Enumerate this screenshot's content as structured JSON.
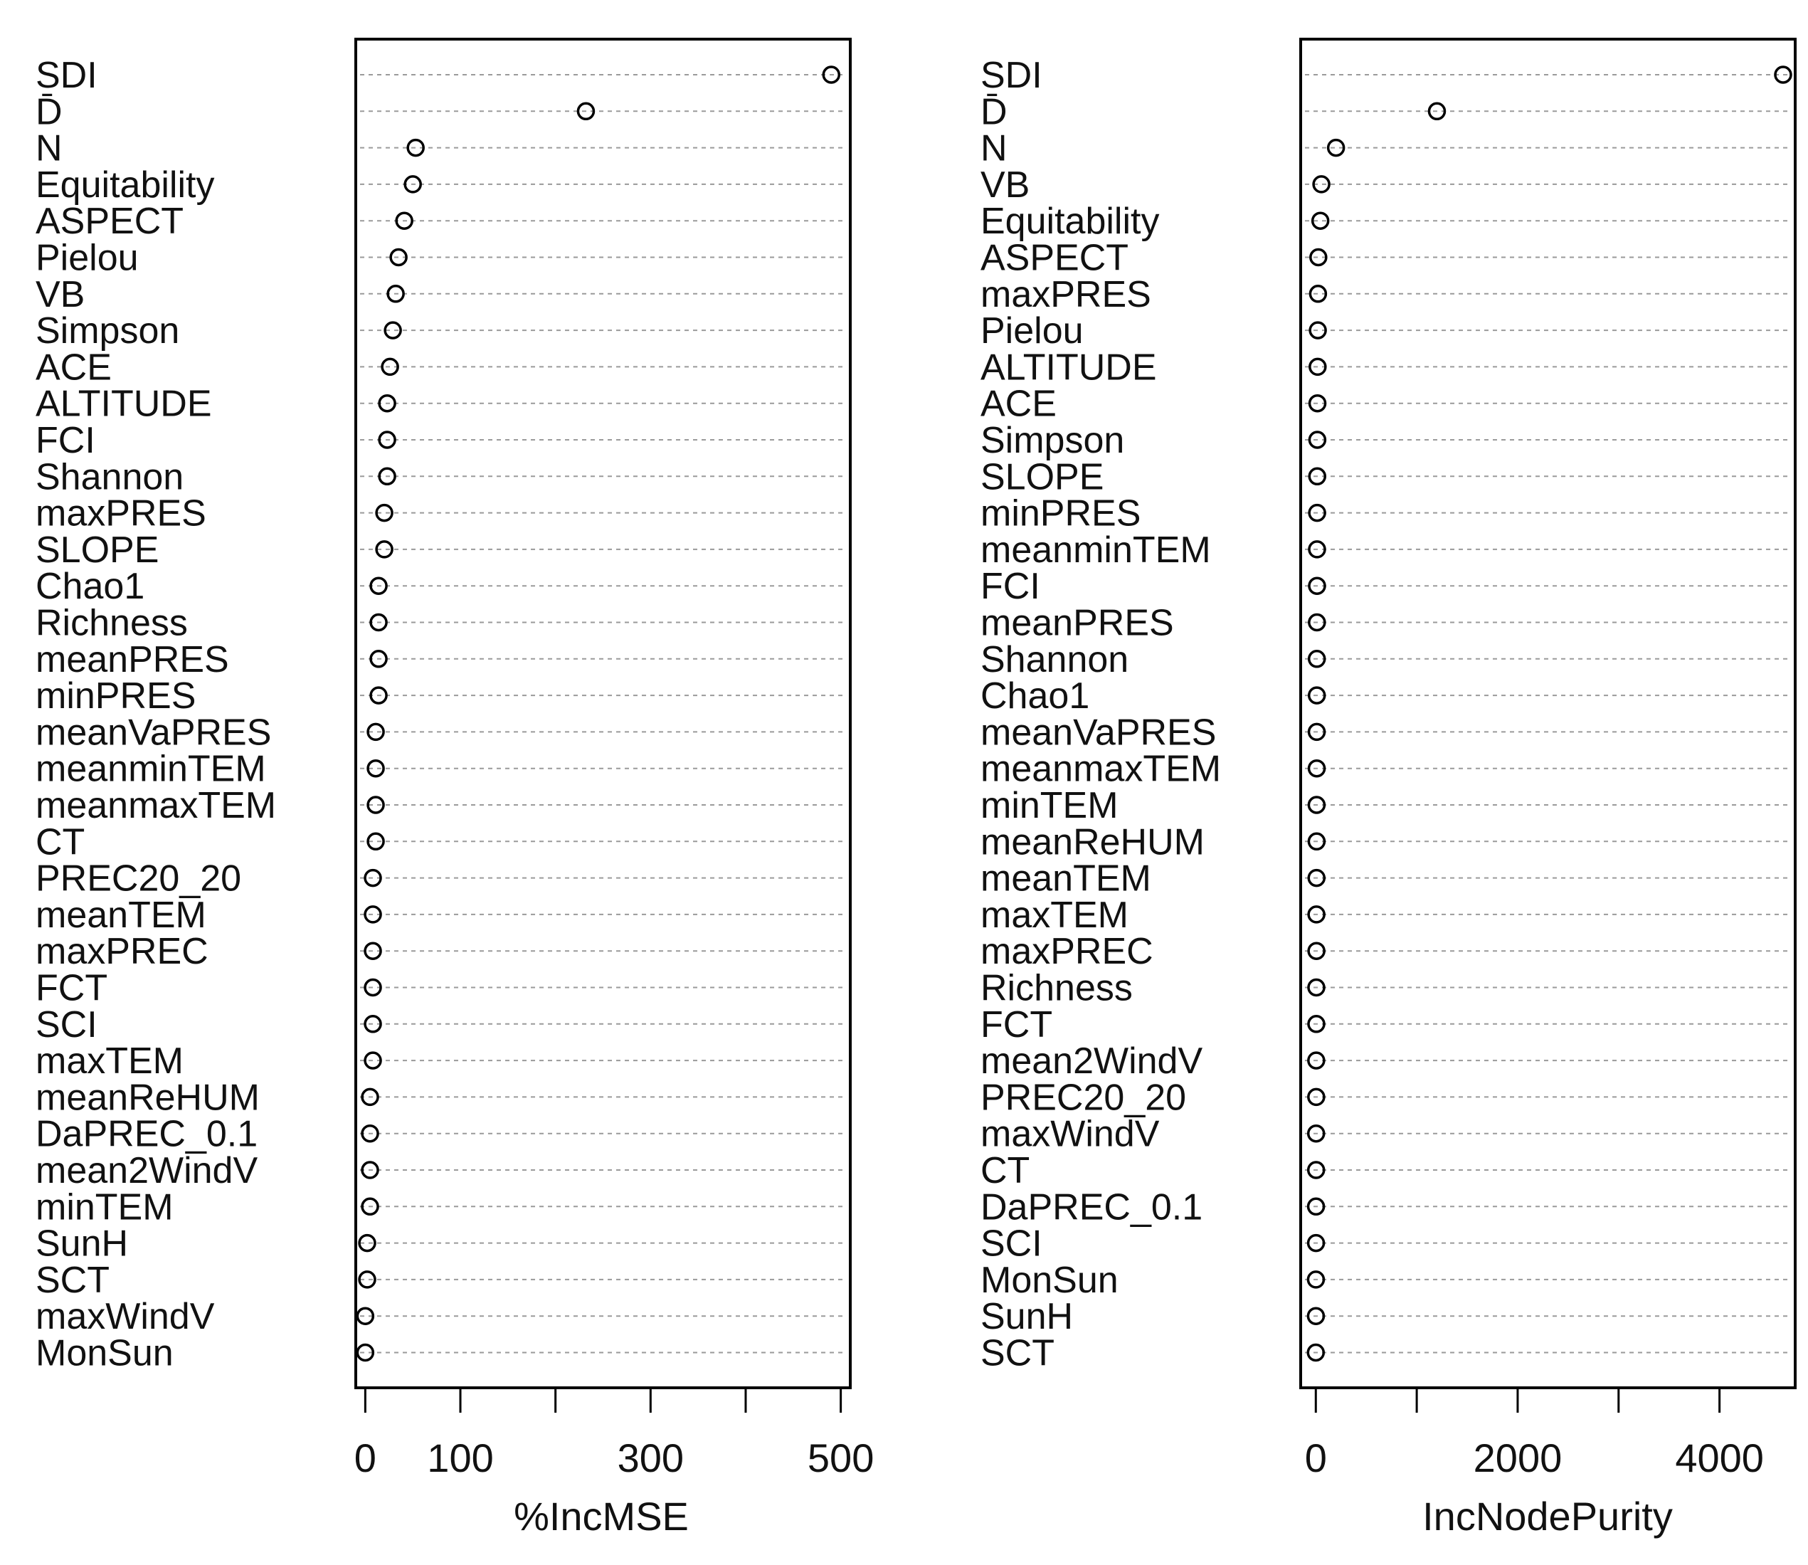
{
  "chart_data": [
    {
      "type": "scatter",
      "xlabel": "%IncMSE",
      "xlim": [
        -10,
        510
      ],
      "xticks": [
        0,
        100,
        200,
        300,
        400,
        500
      ],
      "xtick_labels": [
        "0",
        "100",
        "",
        "300",
        "",
        "500"
      ],
      "grid": false,
      "points": [
        {
          "label": "SDI",
          "value": 490
        },
        {
          "label": "D̄",
          "value": 232
        },
        {
          "label": "N",
          "value": 53
        },
        {
          "label": "Equitability",
          "value": 50
        },
        {
          "label": "ASPECT",
          "value": 41
        },
        {
          "label": "Pielou",
          "value": 35
        },
        {
          "label": "VB",
          "value": 32
        },
        {
          "label": "Simpson",
          "value": 29
        },
        {
          "label": "ACE",
          "value": 26
        },
        {
          "label": "ALTITUDE",
          "value": 23
        },
        {
          "label": "FCI",
          "value": 23
        },
        {
          "label": "Shannon",
          "value": 23
        },
        {
          "label": "maxPRES",
          "value": 20
        },
        {
          "label": "SLOPE",
          "value": 20
        },
        {
          "label": "Chao1",
          "value": 14
        },
        {
          "label": "Richness",
          "value": 14
        },
        {
          "label": "meanPRES",
          "value": 14
        },
        {
          "label": "minPRES",
          "value": 14
        },
        {
          "label": "meanVaPRES",
          "value": 11
        },
        {
          "label": "meanminTEM",
          "value": 11
        },
        {
          "label": "meanmaxTEM",
          "value": 11
        },
        {
          "label": "CT",
          "value": 11
        },
        {
          "label": "PREC20_20",
          "value": 8
        },
        {
          "label": "meanTEM",
          "value": 8
        },
        {
          "label": "maxPREC",
          "value": 8
        },
        {
          "label": "FCT",
          "value": 8
        },
        {
          "label": "SCI",
          "value": 8
        },
        {
          "label": "maxTEM",
          "value": 8
        },
        {
          "label": "meanReHUM",
          "value": 5
        },
        {
          "label": "DaPREC_0.1",
          "value": 5
        },
        {
          "label": "mean2WindV",
          "value": 5
        },
        {
          "label": "minTEM",
          "value": 5
        },
        {
          "label": "SunH",
          "value": 2
        },
        {
          "label": "SCT",
          "value": 2
        },
        {
          "label": "maxWindV",
          "value": 0
        },
        {
          "label": "MonSun",
          "value": 0
        }
      ]
    },
    {
      "type": "scatter",
      "xlabel": "IncNodePurity",
      "xlim": [
        -150,
        4750
      ],
      "xticks": [
        0,
        1000,
        2000,
        3000,
        4000
      ],
      "xtick_labels": [
        "0",
        "",
        "2000",
        "",
        "4000"
      ],
      "grid": false,
      "points": [
        {
          "label": "SDI",
          "value": 4630
        },
        {
          "label": "D̄",
          "value": 1200
        },
        {
          "label": "N",
          "value": 200
        },
        {
          "label": "VB",
          "value": 55
        },
        {
          "label": "Equitability",
          "value": 45
        },
        {
          "label": "ASPECT",
          "value": 25
        },
        {
          "label": "maxPRES",
          "value": 22
        },
        {
          "label": "Pielou",
          "value": 20
        },
        {
          "label": "ALTITUDE",
          "value": 18
        },
        {
          "label": "ACE",
          "value": 16
        },
        {
          "label": "Simpson",
          "value": 15
        },
        {
          "label": "SLOPE",
          "value": 14
        },
        {
          "label": "minPRES",
          "value": 13
        },
        {
          "label": "meanminTEM",
          "value": 12
        },
        {
          "label": "FCI",
          "value": 12
        },
        {
          "label": "meanPRES",
          "value": 11
        },
        {
          "label": "Shannon",
          "value": 10
        },
        {
          "label": "Chao1",
          "value": 10
        },
        {
          "label": "meanVaPRES",
          "value": 9
        },
        {
          "label": "meanmaxTEM",
          "value": 9
        },
        {
          "label": "minTEM",
          "value": 8
        },
        {
          "label": "meanReHUM",
          "value": 8
        },
        {
          "label": "meanTEM",
          "value": 7
        },
        {
          "label": "maxTEM",
          "value": 6
        },
        {
          "label": "maxPREC",
          "value": 6
        },
        {
          "label": "Richness",
          "value": 5
        },
        {
          "label": "FCT",
          "value": 5
        },
        {
          "label": "mean2WindV",
          "value": 4
        },
        {
          "label": "PREC20_20",
          "value": 4
        },
        {
          "label": "maxWindV",
          "value": 3
        },
        {
          "label": "CT",
          "value": 3
        },
        {
          "label": "DaPREC_0.1",
          "value": 2
        },
        {
          "label": "SCI",
          "value": 2
        },
        {
          "label": "MonSun",
          "value": 1
        },
        {
          "label": "SunH",
          "value": 1
        },
        {
          "label": "SCT",
          "value": 0
        }
      ]
    }
  ]
}
